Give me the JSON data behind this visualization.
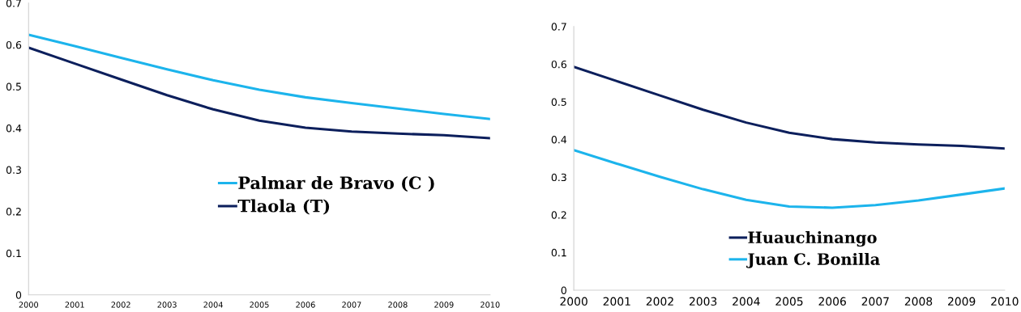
{
  "chart_data": [
    {
      "type": "line",
      "categories": [
        "2000",
        "2001",
        "2002",
        "2003",
        "2004",
        "2005",
        "2006",
        "2007",
        "2008",
        "2009",
        "2010"
      ],
      "ylim": [
        0,
        0.7
      ],
      "yticks": [
        0,
        0.1,
        0.2,
        0.3,
        0.4,
        0.5,
        0.6,
        0.7
      ],
      "grid": false,
      "legend": "bottom",
      "marker": "none",
      "series": [
        {
          "name": "Palmar de Bravo (C )",
          "color": "#1cb4ec",
          "values": [
            0.624,
            0.597,
            0.569,
            0.541,
            0.515,
            0.492,
            0.474,
            0.46,
            0.447,
            0.434,
            0.422
          ]
        },
        {
          "name": "Tlaola (T)",
          "color": "#0c1f5c",
          "values": [
            0.593,
            0.555,
            0.517,
            0.479,
            0.445,
            0.418,
            0.401,
            0.392,
            0.387,
            0.383,
            0.376
          ]
        }
      ]
    },
    {
      "type": "line",
      "categories": [
        "2000",
        "2001",
        "2002",
        "2003",
        "2004",
        "2005",
        "2006",
        "2007",
        "2008",
        "2009",
        "2010"
      ],
      "ylim": [
        0,
        0.7
      ],
      "yticks": [
        0,
        0.1,
        0.2,
        0.3,
        0.4,
        0.5,
        0.6,
        0.7
      ],
      "grid": false,
      "legend": "bottom",
      "marker": "none",
      "series": [
        {
          "name": "Huauchinango",
          "color": "#0c1f5c",
          "values": [
            0.593,
            0.555,
            0.517,
            0.479,
            0.445,
            0.418,
            0.401,
            0.392,
            0.387,
            0.383,
            0.376
          ]
        },
        {
          "name": "Juan C. Bonilla",
          "color": "#1cb4ec",
          "values": [
            0.372,
            0.336,
            0.301,
            0.268,
            0.24,
            0.222,
            0.219,
            0.226,
            0.238,
            0.254,
            0.27
          ]
        }
      ]
    }
  ]
}
